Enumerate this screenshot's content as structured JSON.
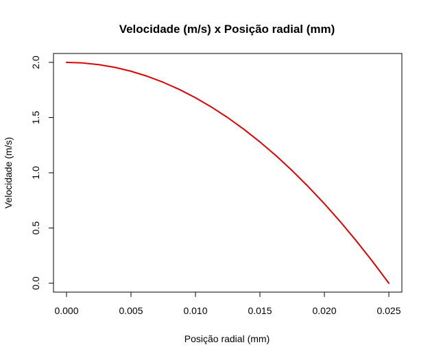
{
  "chart_data": {
    "type": "line",
    "title": "Velocidade (m/s) x Posição radial (mm)",
    "xlabel": "Posição radial (mm)",
    "ylabel": "Velocidade (m/s)",
    "xlim": [
      0,
      0.025
    ],
    "ylim": [
      0,
      2.0
    ],
    "x_ticks": [
      0,
      0.005,
      0.01,
      0.015,
      0.02,
      0.025
    ],
    "x_tick_labels": [
      "0.000",
      "0.005",
      "0.010",
      "0.015",
      "0.020",
      "0.025"
    ],
    "y_ticks": [
      0,
      0.5,
      1.0,
      1.5,
      2.0
    ],
    "y_tick_labels": [
      "0.0",
      "0.5",
      "1.0",
      "1.5",
      "2.0"
    ],
    "grid": false,
    "series": [
      {
        "color": "#dd0000",
        "x": [
          0,
          0.00125,
          0.0025,
          0.00375,
          0.005,
          0.00625,
          0.0075,
          0.00875,
          0.01,
          0.01125,
          0.0125,
          0.01375,
          0.015,
          0.01625,
          0.0175,
          0.01875,
          0.02,
          0.02125,
          0.0225,
          0.02375,
          0.025
        ],
        "y": [
          2.0,
          1.995,
          1.98,
          1.955,
          1.92,
          1.875,
          1.82,
          1.755,
          1.68,
          1.595,
          1.5,
          1.395,
          1.28,
          1.155,
          1.02,
          0.875,
          0.72,
          0.555,
          0.38,
          0.195,
          0.0
        ]
      }
    ]
  }
}
